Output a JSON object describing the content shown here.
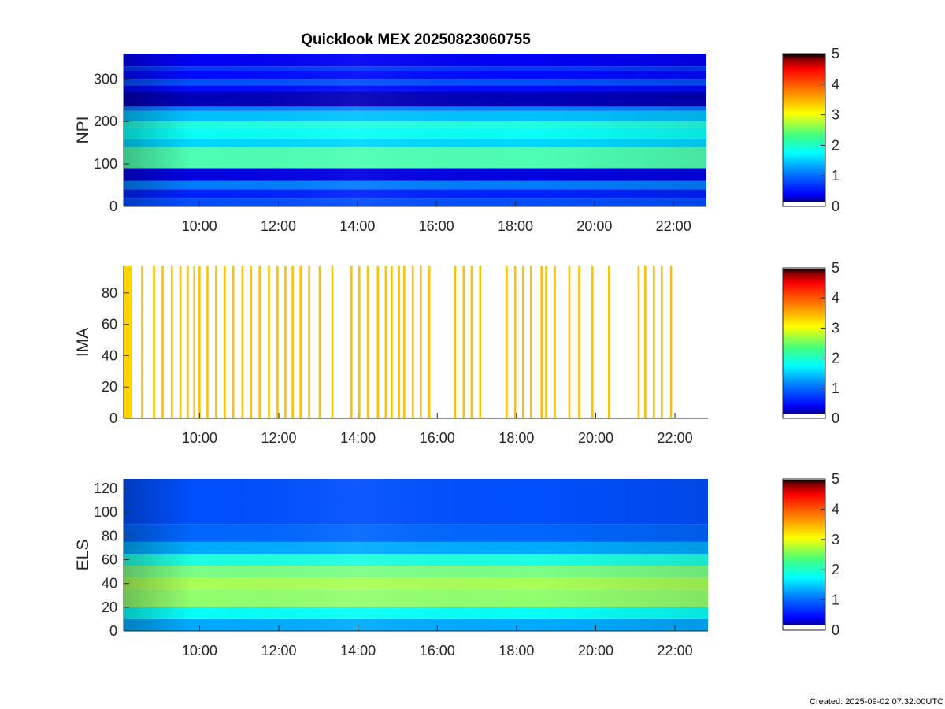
{
  "title": "Quicklook MEX 20250823060755",
  "created": "Created: 2025-09-02 07:32:00UTC",
  "colormap": [
    "#00008f",
    "#0000ff",
    "#0080ff",
    "#00ffff",
    "#80ff80",
    "#ffff00",
    "#ff8000",
    "#ff0000",
    "#800000",
    "#000000"
  ],
  "chart_data": [
    {
      "type": "heatmap",
      "name": "NPI",
      "ylabel": "NPI",
      "x_range": [
        "08:05",
        "22:50"
      ],
      "x_ticks": [
        "10:00",
        "12:00",
        "14:00",
        "16:00",
        "18:00",
        "20:00",
        "22:00"
      ],
      "ylim": [
        0,
        360
      ],
      "y_ticks": [
        "0",
        "100",
        "200",
        "300"
      ],
      "colorbar": {
        "range": [
          0,
          5
        ],
        "ticks": [
          "0",
          "1",
          "2",
          "3",
          "4",
          "5"
        ]
      },
      "bands": [
        {
          "y": [
            0,
            20
          ],
          "value": 0.9
        },
        {
          "y": [
            20,
            40
          ],
          "value": 0.7
        },
        {
          "y": [
            40,
            60
          ],
          "value": 1.1
        },
        {
          "y": [
            60,
            90
          ],
          "value": 0.4
        },
        {
          "y": [
            90,
            140
          ],
          "value": 2.0
        },
        {
          "y": [
            140,
            160
          ],
          "value": 1.5
        },
        {
          "y": [
            160,
            185
          ],
          "value": 1.7
        },
        {
          "y": [
            185,
            200
          ],
          "value": 1.8
        },
        {
          "y": [
            200,
            225
          ],
          "value": 1.4
        },
        {
          "y": [
            225,
            235
          ],
          "value": 1.1
        },
        {
          "y": [
            235,
            270
          ],
          "value": 0.2
        },
        {
          "y": [
            270,
            285
          ],
          "value": 0.6
        },
        {
          "y": [
            285,
            300
          ],
          "value": 0.9
        },
        {
          "y": [
            300,
            320
          ],
          "value": 0.6
        },
        {
          "y": [
            320,
            330
          ],
          "value": 0.8
        },
        {
          "y": [
            330,
            360
          ],
          "value": 0.5
        }
      ]
    },
    {
      "type": "heatmap",
      "name": "IMA",
      "ylabel": "IMA",
      "x_range": [
        "08:05",
        "22:50"
      ],
      "x_ticks": [
        "10:00",
        "12:00",
        "14:00",
        "16:00",
        "18:00",
        "20:00",
        "22:00"
      ],
      "ylim": [
        0,
        97
      ],
      "y_ticks": [
        "0",
        "20",
        "40",
        "60",
        "80"
      ],
      "colorbar": {
        "range": [
          0,
          5
        ],
        "ticks": [
          "0",
          "1",
          "2",
          "3",
          "4",
          "5"
        ]
      },
      "scan_times": [
        "08:33",
        "08:51",
        "09:04",
        "09:18",
        "09:31",
        "09:42",
        "09:52",
        "10:00",
        "10:12",
        "10:25",
        "10:38",
        "10:51",
        "11:05",
        "11:18",
        "11:31",
        "11:45",
        "11:58",
        "12:10",
        "12:21",
        "12:33",
        "12:46",
        "13:02",
        "13:21",
        "13:50",
        "14:02",
        "14:15",
        "14:30",
        "14:42",
        "14:51",
        "15:02",
        "15:10",
        "15:23",
        "15:35",
        "15:48",
        "16:27",
        "16:40",
        "16:52",
        "17:05",
        "17:45",
        "17:58",
        "18:10",
        "18:22",
        "18:38",
        "18:45",
        "18:58",
        "19:20",
        "19:35",
        "19:55",
        "20:20",
        "21:05",
        "21:15",
        "21:28",
        "21:40",
        "21:54"
      ]
    },
    {
      "type": "heatmap",
      "name": "ELS",
      "ylabel": "ELS",
      "x_range": [
        "08:05",
        "22:50"
      ],
      "x_ticks": [
        "10:00",
        "12:00",
        "14:00",
        "16:00",
        "18:00",
        "20:00",
        "22:00"
      ],
      "ylim": [
        0,
        128
      ],
      "y_ticks": [
        "0",
        "20",
        "40",
        "60",
        "80",
        "100",
        "120"
      ],
      "colorbar": {
        "range": [
          0,
          5
        ],
        "ticks": [
          "0",
          "1",
          "2",
          "3",
          "4",
          "5"
        ]
      },
      "bands": [
        {
          "y": [
            0,
            10
          ],
          "value": 1.3
        },
        {
          "y": [
            10,
            20
          ],
          "value": 1.7
        },
        {
          "y": [
            20,
            35
          ],
          "value": 2.3
        },
        {
          "y": [
            35,
            45
          ],
          "value": 2.4
        },
        {
          "y": [
            45,
            55
          ],
          "value": 2.2
        },
        {
          "y": [
            55,
            65
          ],
          "value": 1.8
        },
        {
          "y": [
            65,
            75
          ],
          "value": 1.3
        },
        {
          "y": [
            75,
            90
          ],
          "value": 1.0
        },
        {
          "y": [
            90,
            128
          ],
          "value": 0.9
        }
      ]
    }
  ]
}
